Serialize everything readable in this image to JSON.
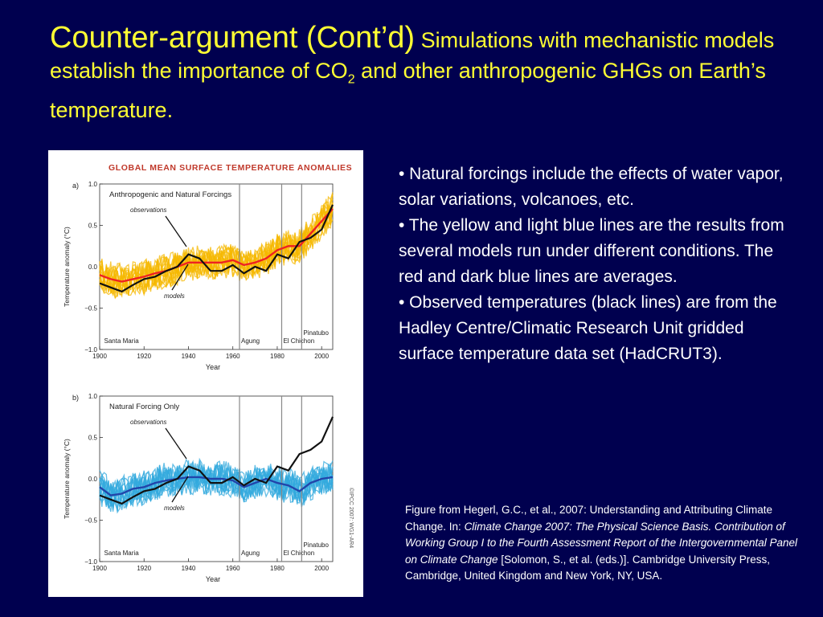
{
  "slide": {
    "title_main": "Counter-argument (Cont’d)",
    "title_rest_a": " Simulations with mechanistic models establish the importance of CO",
    "title_sub": "2",
    "title_rest_b": " and other anthropogenic GHGs on Earth’s temperature.",
    "bullets": [
      "•  Natural forcings include the effects of water vapor, solar variations, volcanoes, etc.",
      "•  The yellow and light blue lines are the results from several models run under different conditions.  The red and dark blue lines are averages.",
      "•  Observed temperatures (black lines) are from the Hadley Centre/Climatic Research Unit gridded surface temperature data set (HadCRUT3)."
    ],
    "caption": {
      "part1": "Figure from Hegerl, G.C., et al., 2007: Understanding and Attributing Climate Change. In: ",
      "italic": "Climate Change 2007: The Physical Science Basis. Contribution of Working Group I to the Fourth Assessment Report of the Intergovernmental Panel on Climate Change",
      "part2": " [Solomon, S., et al. (eds.)]. Cambridge University Press, Cambridge, United Kingdom and New York, NY, USA."
    }
  },
  "chart_data": {
    "type": "line",
    "title": "Global Mean Surface Temperature Anomalies",
    "credit": "©IPCC 2007: WG1-AR4",
    "xlabel": "Year",
    "ylabel": "Temperature anomaly (°C)",
    "xlim": [
      1900,
      2005
    ],
    "ylim": [
      -1.0,
      1.0
    ],
    "xticks": [
      1900,
      1920,
      1940,
      1960,
      1980,
      2000
    ],
    "yticks": [
      1.0,
      0.5,
      0.0,
      -0.5,
      -1.0
    ],
    "ytick_labels": [
      "1.0",
      "0.5",
      "0.0",
      "−0.5",
      "−1.0"
    ],
    "volcanoes": [
      {
        "name": "Santa Maria",
        "year": 1902
      },
      {
        "name": "Agung",
        "year": 1963
      },
      {
        "name": "El Chichon",
        "year": 1982
      },
      {
        "name": "Pinatubo",
        "year": 1991
      }
    ],
    "observations_x": [
      1900,
      1905,
      1910,
      1915,
      1920,
      1925,
      1930,
      1935,
      1940,
      1945,
      1950,
      1955,
      1960,
      1965,
      1970,
      1975,
      1980,
      1985,
      1990,
      1995,
      2000,
      2005
    ],
    "observations": [
      -0.2,
      -0.25,
      -0.3,
      -0.22,
      -0.15,
      -0.12,
      -0.05,
      0.0,
      0.15,
      0.1,
      -0.05,
      -0.05,
      0.02,
      -0.08,
      0.0,
      -0.05,
      0.15,
      0.1,
      0.3,
      0.35,
      0.45,
      0.75
    ],
    "panels": [
      {
        "label": "a)",
        "subtitle": "Anthropogenic and Natural Forcings",
        "observations_label": "observations",
        "models_label": "models",
        "ensemble_color": "#f5b800",
        "mean_color": "#ee2222",
        "models_mean_x": [
          1900,
          1905,
          1910,
          1915,
          1920,
          1925,
          1930,
          1935,
          1940,
          1945,
          1950,
          1955,
          1960,
          1965,
          1970,
          1975,
          1980,
          1985,
          1990,
          1995,
          2000,
          2005
        ],
        "models_mean": [
          -0.1,
          -0.15,
          -0.18,
          -0.15,
          -0.12,
          -0.08,
          -0.05,
          0.0,
          0.05,
          0.05,
          0.05,
          0.05,
          0.08,
          0.02,
          0.05,
          0.1,
          0.2,
          0.25,
          0.25,
          0.4,
          0.55,
          0.7
        ]
      },
      {
        "label": "b)",
        "subtitle": "Natural Forcing Only",
        "observations_label": "observations",
        "models_label": "models",
        "ensemble_color": "#33aadd",
        "mean_color": "#2244aa",
        "models_mean_x": [
          1900,
          1905,
          1910,
          1915,
          1920,
          1925,
          1930,
          1935,
          1940,
          1945,
          1950,
          1955,
          1960,
          1965,
          1970,
          1975,
          1980,
          1985,
          1990,
          1995,
          2000,
          2005
        ],
        "models_mean": [
          -0.1,
          -0.2,
          -0.18,
          -0.12,
          -0.1,
          -0.05,
          -0.02,
          0.0,
          0.02,
          0.02,
          0.0,
          0.0,
          -0.02,
          -0.1,
          -0.05,
          0.0,
          -0.05,
          -0.08,
          -0.15,
          -0.05,
          0.0,
          0.02
        ]
      }
    ]
  }
}
